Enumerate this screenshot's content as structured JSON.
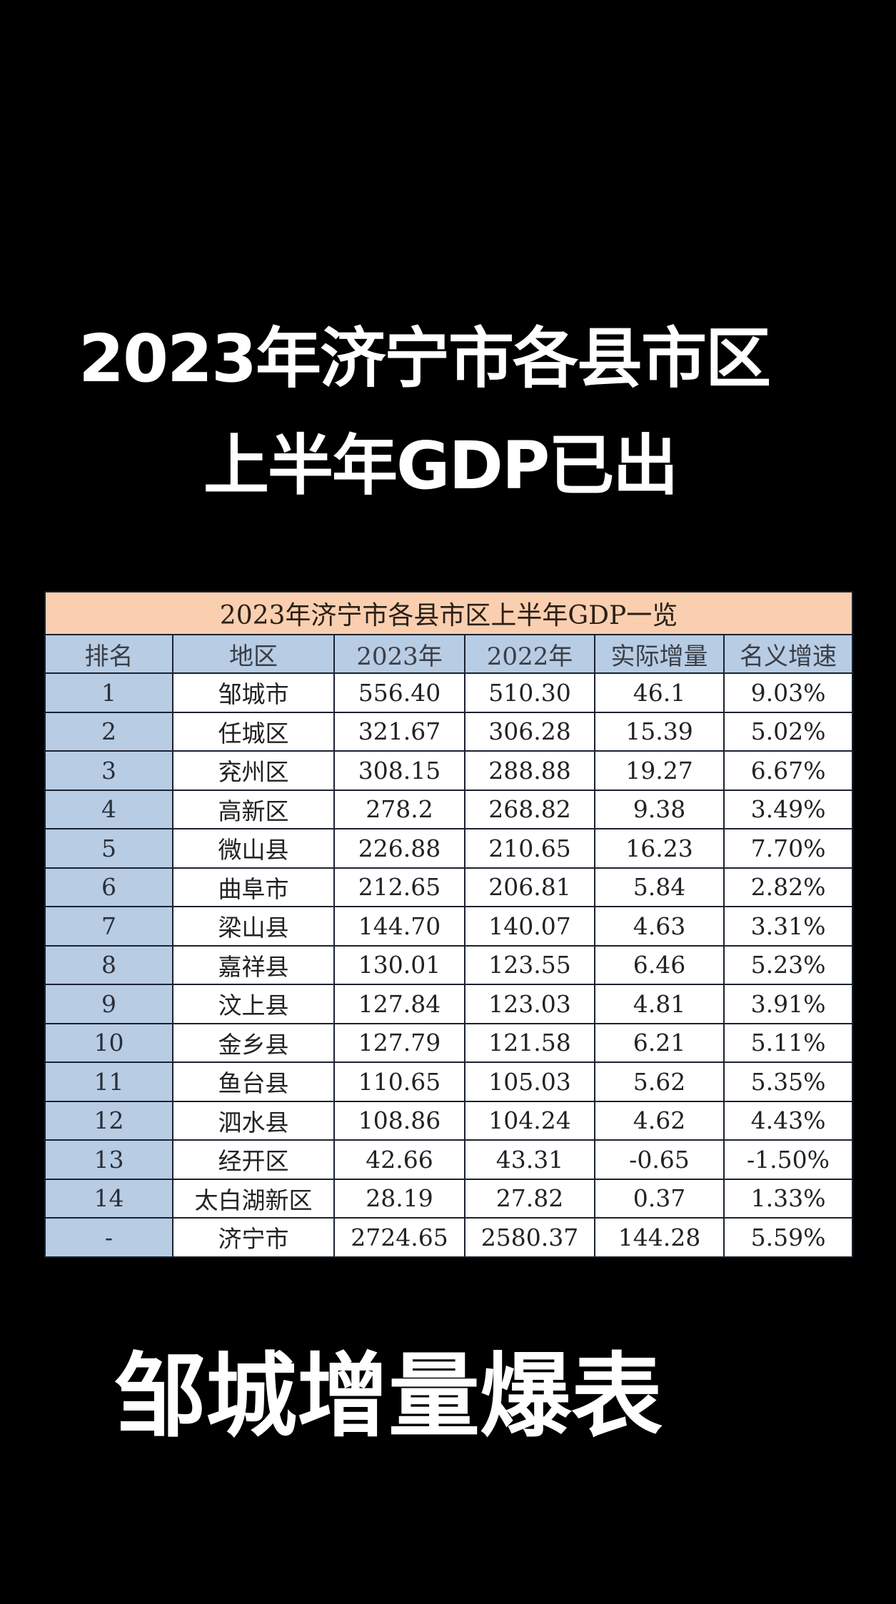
{
  "headline": {
    "line1": "2023年济宁市各县市区",
    "line2": "上半年GDP已出",
    "footer": "邹城增量爆表"
  },
  "table": {
    "title": "2023年济宁市各县市区上半年GDP一览",
    "headers": [
      "排名",
      "地区",
      "2023年",
      "2022年",
      "实际增量",
      "名义增速"
    ],
    "rows": [
      {
        "rank": "1",
        "region": "邹城市",
        "y2023": "556.40",
        "y2022": "510.30",
        "increase": "46.1",
        "growth": "9.03%"
      },
      {
        "rank": "2",
        "region": "任城区",
        "y2023": "321.67",
        "y2022": "306.28",
        "increase": "15.39",
        "growth": "5.02%"
      },
      {
        "rank": "3",
        "region": "兖州区",
        "y2023": "308.15",
        "y2022": "288.88",
        "increase": "19.27",
        "growth": "6.67%"
      },
      {
        "rank": "4",
        "region": "高新区",
        "y2023": "278.2",
        "y2022": "268.82",
        "increase": "9.38",
        "growth": "3.49%"
      },
      {
        "rank": "5",
        "region": "微山县",
        "y2023": "226.88",
        "y2022": "210.65",
        "increase": "16.23",
        "growth": "7.70%"
      },
      {
        "rank": "6",
        "region": "曲阜市",
        "y2023": "212.65",
        "y2022": "206.81",
        "increase": "5.84",
        "growth": "2.82%"
      },
      {
        "rank": "7",
        "region": "梁山县",
        "y2023": "144.70",
        "y2022": "140.07",
        "increase": "4.63",
        "growth": "3.31%"
      },
      {
        "rank": "8",
        "region": "嘉祥县",
        "y2023": "130.01",
        "y2022": "123.55",
        "increase": "6.46",
        "growth": "5.23%"
      },
      {
        "rank": "9",
        "region": "汶上县",
        "y2023": "127.84",
        "y2022": "123.03",
        "increase": "4.81",
        "growth": "3.91%"
      },
      {
        "rank": "10",
        "region": "金乡县",
        "y2023": "127.79",
        "y2022": "121.58",
        "increase": "6.21",
        "growth": "5.11%"
      },
      {
        "rank": "11",
        "region": "鱼台县",
        "y2023": "110.65",
        "y2022": "105.03",
        "increase": "5.62",
        "growth": "5.35%"
      },
      {
        "rank": "12",
        "region": "泗水县",
        "y2023": "108.86",
        "y2022": "104.24",
        "increase": "4.62",
        "growth": "4.43%"
      },
      {
        "rank": "13",
        "region": "经开区",
        "y2023": "42.66",
        "y2022": "43.31",
        "increase": "-0.65",
        "growth": "-1.50%"
      },
      {
        "rank": "14",
        "region": "太白湖新区",
        "y2023": "28.19",
        "y2022": "27.82",
        "increase": "0.37",
        "growth": "1.33%"
      },
      {
        "rank": "-",
        "region": "济宁市",
        "y2023": "2724.65",
        "y2022": "2580.37",
        "increase": "144.28",
        "growth": "5.59%"
      }
    ]
  },
  "colors": {
    "background": "#000000",
    "headline_text": "#ffffff",
    "title_row_bg": "#f9cfb0",
    "header_row_bg": "#b8cce4",
    "rank_col_bg": "#b8cce4",
    "cell_bg": "#ffffff",
    "border": "#1a2230"
  },
  "chart_data": {
    "type": "table",
    "title": "2023年济宁市各县市区上半年GDP一览",
    "columns": [
      "排名",
      "地区",
      "2023年",
      "2022年",
      "实际增量",
      "名义增速"
    ],
    "categories": [
      "邹城市",
      "任城区",
      "兖州区",
      "高新区",
      "微山县",
      "曲阜市",
      "梁山县",
      "嘉祥县",
      "汶上县",
      "金乡县",
      "鱼台县",
      "泗水县",
      "经开区",
      "太白湖新区",
      "济宁市"
    ],
    "series": [
      {
        "name": "2023年",
        "values": [
          556.4,
          321.67,
          308.15,
          278.2,
          226.88,
          212.65,
          144.7,
          130.01,
          127.84,
          127.79,
          110.65,
          108.86,
          42.66,
          28.19,
          2724.65
        ]
      },
      {
        "name": "2022年",
        "values": [
          510.3,
          306.28,
          288.88,
          268.82,
          210.65,
          206.81,
          140.07,
          123.55,
          123.03,
          121.58,
          105.03,
          104.24,
          43.31,
          27.82,
          2580.37
        ]
      },
      {
        "name": "实际增量",
        "values": [
          46.1,
          15.39,
          19.27,
          9.38,
          16.23,
          5.84,
          4.63,
          6.46,
          4.81,
          6.21,
          5.62,
          4.62,
          -0.65,
          0.37,
          144.28
        ]
      },
      {
        "name": "名义增速(%)",
        "values": [
          9.03,
          5.02,
          6.67,
          3.49,
          7.7,
          2.82,
          3.31,
          5.23,
          3.91,
          5.11,
          5.35,
          4.43,
          -1.5,
          1.33,
          5.59
        ]
      }
    ],
    "ranks": [
      "1",
      "2",
      "3",
      "4",
      "5",
      "6",
      "7",
      "8",
      "9",
      "10",
      "11",
      "12",
      "13",
      "14",
      "-"
    ]
  }
}
